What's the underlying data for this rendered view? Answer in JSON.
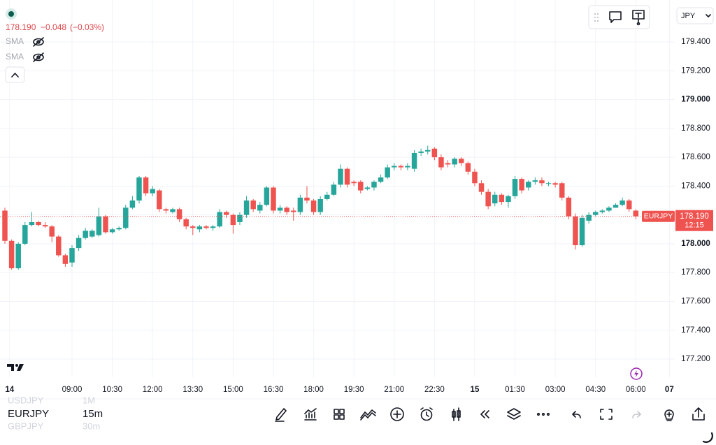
{
  "legend": {
    "price": "178.190",
    "change": "−0.048",
    "change_pct": "(−0.03%)",
    "indicators": [
      "SMA",
      "SMA"
    ]
  },
  "currency": "JPY",
  "watchlist": [
    {
      "symbol": "USDJPY",
      "interval": "1M"
    },
    {
      "symbol": "EURJPY",
      "interval": "15m"
    },
    {
      "symbol": "GBPJPY",
      "interval": "30m"
    }
  ],
  "chart_data": {
    "type": "candlestick",
    "up_color": "#26a69a",
    "down_color": "#ef5350",
    "grid": true,
    "symbol": "EURJPY",
    "last_price": {
      "value": 178.19,
      "label": "178.190"
    },
    "countdown": "12:15",
    "xlim": [
      -0.73,
      99.8
    ],
    "xticks": [
      {
        "value": 0.7,
        "label": "14"
      },
      {
        "value": 10,
        "label": "09:00"
      },
      {
        "value": 16,
        "label": "10:30"
      },
      {
        "value": 22,
        "label": "12:00"
      },
      {
        "value": 28,
        "label": "13:30"
      },
      {
        "value": 34,
        "label": "15:00"
      },
      {
        "value": 40,
        "label": "16:30"
      },
      {
        "value": 46,
        "label": "18:00"
      },
      {
        "value": 52,
        "label": "19:30"
      },
      {
        "value": 58,
        "label": "21:00"
      },
      {
        "value": 64,
        "label": "22:30"
      },
      {
        "value": 70,
        "label": "15"
      },
      {
        "value": 76,
        "label": "01:30"
      },
      {
        "value": 82,
        "label": "03:00"
      },
      {
        "value": 88,
        "label": "04:30"
      },
      {
        "value": 94,
        "label": "06:00"
      },
      {
        "value": 99,
        "label": "07"
      }
    ],
    "ylim": [
      177.074,
      179.691
    ],
    "yticks": [
      {
        "value": 177.2,
        "label": "177.200"
      },
      {
        "value": 177.4,
        "label": "177.400"
      },
      {
        "value": 177.6,
        "label": "177.600"
      },
      {
        "value": 177.8,
        "label": "177.800"
      },
      {
        "value": 178.0,
        "label": "178.000"
      },
      {
        "value": 178.2,
        "label": "178.200"
      },
      {
        "value": 178.4,
        "label": "178.400"
      },
      {
        "value": 178.6,
        "label": "178.600"
      },
      {
        "value": 178.8,
        "label": "178.800"
      },
      {
        "value": 179.0,
        "label": "179.000"
      },
      {
        "value": 179.2,
        "label": "179.200"
      },
      {
        "value": 179.4,
        "label": "179.400"
      }
    ],
    "open": [
      178.23,
      178.02,
      177.83,
      178.0,
      178.13,
      178.15,
      178.13,
      178.12,
      178.05,
      177.92,
      177.87,
      177.97,
      178.04,
      178.05,
      178.06,
      178.19,
      178.08,
      178.1,
      178.11,
      178.25,
      178.3,
      178.46,
      178.35,
      178.37,
      178.24,
      178.22,
      178.24,
      178.17,
      178.12,
      178.1,
      178.12,
      178.11,
      178.12,
      178.22,
      178.2,
      178.15,
      178.2,
      178.3,
      178.23,
      178.27,
      178.39,
      178.23,
      178.25,
      178.23,
      178.22,
      178.32,
      178.3,
      178.22,
      178.31,
      178.34,
      178.41,
      178.52,
      178.43,
      178.43,
      178.38,
      178.39,
      178.43,
      178.46,
      178.53,
      178.54,
      178.53,
      178.52,
      178.63,
      178.64,
      178.66,
      178.6,
      178.56,
      178.55,
      178.59,
      178.56,
      178.5,
      178.42,
      178.36,
      178.28,
      178.34,
      178.29,
      178.33,
      178.45,
      178.39,
      178.43,
      178.44,
      178.42,
      178.42,
      178.42,
      178.32,
      178.19,
      177.99,
      178.16,
      178.2,
      178.22,
      178.23,
      178.25,
      178.27,
      178.3,
      178.23
    ],
    "high": [
      178.25,
      178.03,
      178.01,
      178.15,
      178.22,
      178.16,
      178.15,
      178.13,
      178.06,
      177.93,
      177.99,
      178.06,
      178.11,
      178.1,
      178.25,
      178.2,
      178.11,
      178.12,
      178.27,
      178.33,
      178.47,
      178.47,
      178.4,
      178.38,
      178.25,
      178.25,
      178.25,
      178.18,
      178.13,
      178.13,
      178.13,
      178.13,
      178.24,
      178.23,
      178.21,
      178.22,
      178.33,
      178.31,
      178.29,
      178.4,
      178.4,
      178.27,
      178.26,
      178.25,
      178.34,
      178.4,
      178.31,
      178.33,
      178.36,
      178.43,
      178.55,
      178.53,
      178.44,
      178.44,
      178.4,
      178.44,
      178.48,
      178.55,
      178.56,
      178.55,
      178.56,
      178.65,
      178.66,
      178.68,
      178.67,
      178.62,
      178.58,
      178.6,
      178.6,
      178.57,
      178.52,
      178.44,
      178.38,
      178.36,
      178.35,
      178.34,
      178.47,
      178.46,
      178.44,
      178.46,
      178.46,
      178.43,
      178.43,
      178.43,
      178.33,
      178.21,
      178.2,
      178.22,
      178.23,
      178.24,
      178.26,
      178.28,
      178.32,
      178.31,
      178.24
    ],
    "low": [
      178.0,
      177.82,
      177.82,
      177.99,
      178.12,
      178.12,
      178.11,
      178.01,
      177.91,
      177.84,
      177.84,
      177.95,
      178.03,
      178.04,
      178.05,
      178.07,
      178.07,
      178.09,
      178.1,
      178.24,
      178.28,
      178.33,
      178.33,
      178.22,
      178.21,
      178.21,
      178.15,
      178.1,
      178.06,
      178.08,
      178.1,
      178.09,
      178.11,
      178.18,
      178.07,
      178.13,
      178.18,
      178.22,
      178.21,
      178.26,
      178.21,
      178.21,
      178.2,
      178.16,
      178.2,
      178.28,
      178.2,
      178.2,
      178.3,
      178.33,
      178.39,
      178.39,
      178.4,
      178.35,
      178.37,
      178.37,
      178.42,
      178.45,
      178.51,
      178.51,
      178.51,
      178.5,
      178.61,
      178.62,
      178.58,
      178.51,
      178.53,
      178.53,
      178.54,
      178.48,
      178.4,
      178.34,
      178.24,
      178.26,
      178.27,
      178.25,
      178.31,
      178.35,
      178.37,
      178.41,
      178.4,
      178.4,
      178.39,
      178.3,
      178.17,
      177.96,
      177.98,
      178.14,
      178.19,
      178.21,
      178.22,
      178.25,
      178.26,
      178.22,
      178.17
    ],
    "close": [
      178.02,
      177.83,
      178.0,
      178.13,
      178.15,
      178.13,
      178.12,
      178.05,
      177.92,
      177.86,
      177.97,
      178.04,
      178.09,
      178.09,
      178.19,
      178.08,
      178.1,
      178.11,
      178.25,
      178.3,
      178.46,
      178.35,
      178.38,
      178.24,
      178.23,
      178.24,
      178.17,
      178.12,
      178.11,
      178.12,
      178.11,
      178.12,
      178.22,
      178.2,
      178.13,
      178.2,
      178.3,
      178.24,
      178.27,
      178.39,
      178.23,
      178.25,
      178.22,
      178.22,
      178.32,
      178.3,
      178.22,
      178.31,
      178.34,
      178.41,
      178.52,
      178.41,
      178.42,
      178.37,
      178.39,
      178.43,
      178.46,
      178.53,
      178.54,
      178.53,
      178.54,
      178.63,
      178.64,
      178.65,
      178.6,
      178.53,
      178.55,
      178.59,
      178.56,
      178.5,
      178.42,
      178.36,
      178.26,
      178.34,
      178.29,
      178.33,
      178.45,
      178.37,
      178.43,
      178.44,
      178.42,
      178.42,
      178.41,
      178.32,
      178.19,
      177.99,
      178.18,
      178.2,
      178.22,
      178.23,
      178.25,
      178.27,
      178.3,
      178.24,
      178.19
    ]
  }
}
